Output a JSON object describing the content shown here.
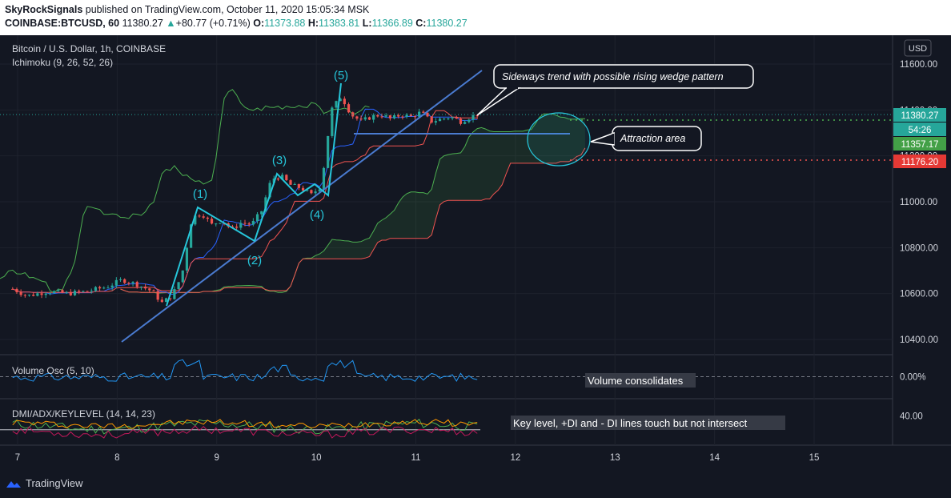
{
  "header": {
    "author": "SkyRockSignals",
    "published_text": "published on TradingView.com, October 11, 2020 15:05:34 MSK",
    "symbol": "COINBASE:BTCUSD, 60",
    "last": "11380.27",
    "change_arrow": "▲",
    "change": "+80.77 (+0.71%)",
    "o_label": "O:",
    "o": "11373.88",
    "h_label": "H:",
    "h": "11383.81",
    "l_label": "L:",
    "l": "11366.89",
    "c_label": "C:",
    "c": "11380.27"
  },
  "legend": {
    "title": "Bitcoin / U.S. Dollar, 1h, COINBASE",
    "ichimoku": "Ichimoku (9, 26, 52, 26)",
    "volume_osc": "Volume Osc (5, 10)",
    "dmi": "DMI/ADX/KEYLEVEL (14, 14, 23)"
  },
  "currency_button": "USD",
  "price_badges": {
    "last": "11380.27",
    "countdown": "54:26",
    "green": "11357.17",
    "red": "11176.20"
  },
  "annotations": {
    "wedge_note": "Sideways trend with possible rising wedge pattern",
    "attraction": "Attraction area",
    "volume_note": "Volume consolidates",
    "key_level_note": "Key level, +DI and - DI lines touch but not intersect",
    "wave_labels": [
      "(1)",
      "(2)",
      "(3)",
      "(4)",
      "(5)"
    ]
  },
  "footer": {
    "brand": "TradingView"
  },
  "colors": {
    "background": "#131722",
    "up": "#26a69a",
    "down": "#ef5350",
    "text": "#d1d4dc",
    "wedge": "#4a7bd0",
    "wave": "#26c6da",
    "kijun": "#ef5350",
    "tenkan": "#2962ff",
    "chikou": "#4caf50"
  },
  "chart_data": {
    "type": "candlestick",
    "x_tick_labels": [
      "7",
      "8",
      "9",
      "10",
      "11",
      "12",
      "13",
      "14",
      "15"
    ],
    "y_tick_labels": [
      "11600.00",
      "11400.00",
      "11200.00",
      "11000.00",
      "10800.00",
      "10600.00",
      "10400.00"
    ],
    "y_ticks": [
      11600,
      11400,
      11200,
      11000,
      10800,
      10600,
      10400
    ],
    "ylim": [
      10370,
      11620
    ],
    "x_range": [
      6.93,
      15.8
    ],
    "close_series": {
      "x": [
        6.95,
        7.1,
        7.3,
        7.5,
        7.7,
        7.9,
        8.05,
        8.2,
        8.35,
        8.45,
        8.55,
        8.65,
        8.75,
        8.85,
        8.95,
        9.05,
        9.15,
        9.25,
        9.35,
        9.45,
        9.55,
        9.65,
        9.75,
        9.85,
        9.95,
        10.05,
        10.15,
        10.25,
        10.35,
        10.45,
        10.55,
        10.65,
        10.75,
        10.85,
        10.95,
        11.05,
        11.15,
        11.25,
        11.35,
        11.45,
        11.55,
        11.62
      ],
      "y": [
        10620,
        10590,
        10610,
        10600,
        10610,
        10630,
        10660,
        10640,
        10610,
        10560,
        10590,
        10680,
        10930,
        10950,
        10900,
        10920,
        10880,
        10910,
        10900,
        10960,
        11100,
        11110,
        11070,
        11060,
        11030,
        11070,
        11400,
        11460,
        11380,
        11350,
        11370,
        11380,
        11360,
        11380,
        11370,
        11390,
        11350,
        11360,
        11370,
        11350,
        11370,
        11380
      ]
    },
    "volume_osc": {
      "ylim": [
        -35,
        35
      ],
      "tick_labels": [
        "0.00%"
      ],
      "ticks": [
        0
      ]
    },
    "dmi": {
      "ylim": [
        5,
        60
      ],
      "tick_labels": [
        "40.00"
      ],
      "ticks": [
        40
      ],
      "key_level": 23
    }
  }
}
